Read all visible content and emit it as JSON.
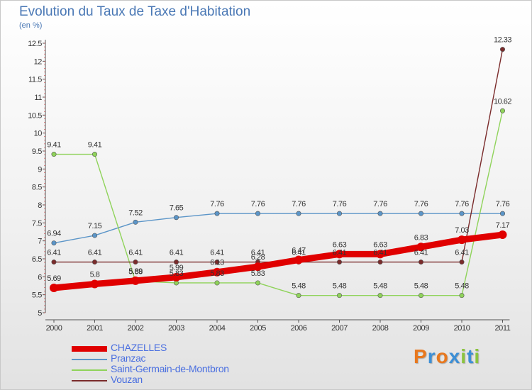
{
  "header": {
    "title": "Evolution du Taux de Taxe d'Habitation",
    "subtitle": "(en %)"
  },
  "brand": {
    "letters": [
      "P",
      "r",
      "o",
      "x",
      "i",
      "t",
      "i"
    ],
    "colors": [
      "#e8781e",
      "#3c8fd6",
      "#e8781e",
      "#3c8fd6",
      "#8bc43f",
      "#3c8fd6",
      "#8bc43f"
    ]
  },
  "chart_data": {
    "type": "line",
    "title": "Evolution du Taux de Taxe d'Habitation",
    "subtitle": "(en %)",
    "xlabel": "",
    "ylabel": "",
    "x": [
      "2000",
      "2001",
      "2002",
      "2003",
      "2004",
      "2005",
      "2006",
      "2007",
      "2008",
      "2009",
      "2010",
      "2011"
    ],
    "ylim": [
      5,
      12.5
    ],
    "yticks": [
      "5",
      "5.5",
      "6",
      "6.5",
      "7",
      "7.5",
      "8",
      "8.5",
      "9",
      "9.5",
      "10",
      "10.5",
      "11",
      "11.5",
      "12",
      "12.5"
    ],
    "grid": false,
    "legend_position": "bottom-left",
    "series": [
      {
        "name": "CHAZELLES",
        "color": "#e00000",
        "values": [
          5.69,
          5.8,
          5.89,
          5.99,
          6.13,
          6.28,
          6.47,
          6.63,
          6.63,
          6.83,
          7.03,
          7.17
        ],
        "labels": [
          "5.69",
          "5.8",
          "5.89",
          "5.99",
          "6.13",
          "6.28",
          "6.47",
          "6.63",
          "6.63",
          "6.83",
          "7.03",
          "7.17"
        ]
      },
      {
        "name": "Pranzac",
        "color": "#5b95c8",
        "values": [
          6.94,
          7.15,
          7.52,
          7.65,
          7.76,
          7.76,
          7.76,
          7.76,
          7.76,
          7.76,
          7.76,
          7.76
        ],
        "labels": [
          "6.94",
          "7.15",
          "7.52",
          "7.65",
          "7.76",
          "7.76",
          "7.76",
          "7.76",
          "7.76",
          "7.76",
          "7.76",
          "7.76"
        ]
      },
      {
        "name": "Saint-Germain-de-Montbron",
        "color": "#8fd35a",
        "values": [
          9.41,
          9.41,
          5.88,
          5.83,
          5.83,
          5.83,
          5.48,
          5.48,
          5.48,
          5.48,
          5.48,
          10.62
        ],
        "labels": [
          "9.41",
          "9.41",
          "5.88",
          "5.83",
          "5.83",
          "5.83",
          "5.48",
          "5.48",
          "5.48",
          "5.48",
          "5.48",
          "10.62"
        ]
      },
      {
        "name": "Vouzan",
        "color": "#7a2b2b",
        "values": [
          6.41,
          6.41,
          6.41,
          6.41,
          6.41,
          6.41,
          6.41,
          6.41,
          6.41,
          6.41,
          6.41,
          12.33
        ],
        "labels": [
          "6.41",
          "6.41",
          "6.41",
          "6.41",
          "6.41",
          "6.41",
          "6.41",
          "6.41",
          "6.41",
          "6.41",
          "6.41",
          "12.33"
        ]
      }
    ]
  }
}
